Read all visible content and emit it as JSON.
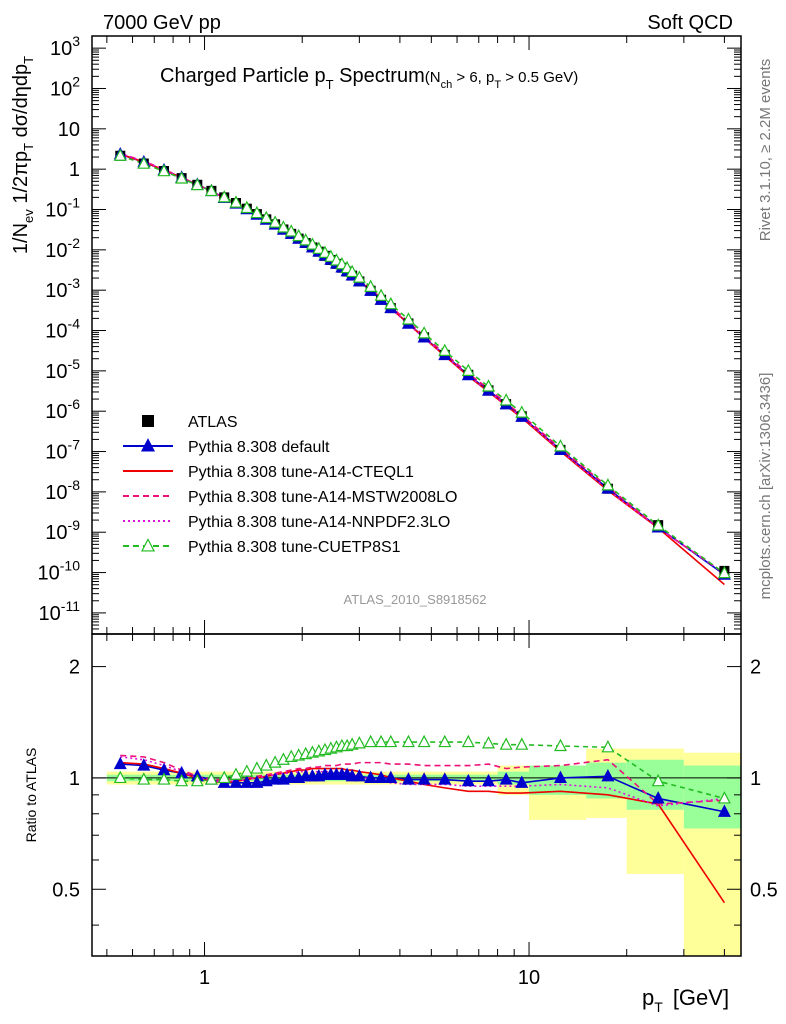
{
  "header": {
    "left": "7000 GeV pp",
    "right": "Soft QCD"
  },
  "side_labels": {
    "rivet": "Rivet 3.1.10, ≥ 2.2M events",
    "mcplots": "mcplots.cern.ch [arXiv:1306.3436]"
  },
  "analysis_id": "ATLAS_2010_S8918562",
  "title": {
    "main_a": "Charged Particle p",
    "main_sub": "T",
    "main_b": " Spectrum",
    "cond_a": "(N",
    "cond_sub1": "ch",
    "cond_b": " > 6, p",
    "cond_sub2": "T",
    "cond_c": " > 0.5 GeV)"
  },
  "axes": {
    "ylabel_main_text": "1/N_ev 1/2πp_T dσ/dηdp_T",
    "ylabel_ratio": "Ratio to ATLAS",
    "xlabel_a": "p",
    "xlabel_sub": "T",
    "xlabel_b": "[GeV]"
  },
  "chart_data": [
    {
      "type": "scatter",
      "panel": "main",
      "xscale": "log",
      "yscale": "log",
      "xlim": [
        0.45,
        45
      ],
      "ylim": [
        3e-12,
        2000
      ],
      "x_ticks": [
        {
          "v": 1,
          "label": "1"
        },
        {
          "v": 10,
          "label": "10"
        }
      ],
      "y_ticks": [
        {
          "e": 3,
          "label": "10^3"
        },
        {
          "e": 2,
          "label": "10^2"
        },
        {
          "e": 1,
          "label": "10"
        },
        {
          "e": 0,
          "label": "1"
        },
        {
          "e": -1,
          "label": "10^-1"
        },
        {
          "e": -2,
          "label": "10^-2"
        },
        {
          "e": -3,
          "label": "10^-3"
        },
        {
          "e": -4,
          "label": "10^-4"
        },
        {
          "e": -5,
          "label": "10^-5"
        },
        {
          "e": -6,
          "label": "10^-6"
        },
        {
          "e": -7,
          "label": "10^-7"
        },
        {
          "e": -8,
          "label": "10^-8"
        },
        {
          "e": -9,
          "label": "10^-9"
        },
        {
          "e": -10,
          "label": "10^-10"
        },
        {
          "e": -11,
          "label": "10^-11"
        }
      ],
      "x": [
        0.55,
        0.65,
        0.75,
        0.85,
        0.95,
        1.05,
        1.15,
        1.25,
        1.35,
        1.45,
        1.55,
        1.65,
        1.75,
        1.85,
        1.95,
        2.05,
        2.15,
        2.25,
        2.35,
        2.45,
        2.55,
        2.65,
        2.75,
        2.85,
        3.0,
        3.25,
        3.5,
        3.75,
        4.25,
        4.75,
        5.5,
        6.5,
        7.5,
        8.5,
        9.5,
        12.5,
        17.5,
        25,
        40
      ],
      "atlas_y": [
        2.15,
        1.38,
        0.9,
        0.6,
        0.41,
        0.29,
        0.2,
        0.145,
        0.105,
        0.077,
        0.057,
        0.043,
        0.032,
        0.025,
        0.019,
        0.0148,
        0.0115,
        0.009,
        0.0071,
        0.0056,
        0.0045,
        0.0036,
        0.0029,
        0.0023,
        0.00165,
        0.00097,
        0.00058,
        0.00036,
        0.00015,
        6.8e-05,
        2.5e-05,
        8e-06,
        3.3e-06,
        1.5e-06,
        7.5e-07,
        1.1e-07,
        1.2e-08,
        1.5e-09,
        1.1e-10
      ],
      "legend": [
        {
          "label": "ATLAS",
          "color": "#000000",
          "marker": "square",
          "line": "none"
        },
        {
          "label": "Pythia 8.308 default",
          "color": "#0000cc",
          "marker": "triangle",
          "line": "solid"
        },
        {
          "label": "Pythia 8.308 tune-A14-CTEQL1",
          "color": "#ee0000",
          "marker": "none",
          "line": "solid"
        },
        {
          "label": "Pythia 8.308 tune-A14-MSTW2008LO",
          "color": "#ee1177",
          "marker": "none",
          "line": "dashed"
        },
        {
          "label": "Pythia 8.308 tune-A14-NNPDF2.3LO",
          "color": "#dd11dd",
          "marker": "none",
          "line": "dotted"
        },
        {
          "label": "Pythia 8.308 tune-CUETP8S1",
          "color": "#22bb22",
          "marker": "open-triangle",
          "line": "dashed"
        }
      ],
      "legend_position": "lower-left"
    },
    {
      "type": "line",
      "panel": "ratio",
      "xscale": "log",
      "yscale": "log",
      "xlim": [
        0.45,
        45
      ],
      "ylim": [
        0.33,
        2.45
      ],
      "y_ticks": [
        {
          "v": 0.5,
          "label": "0.5"
        },
        {
          "v": 1,
          "label": "1"
        },
        {
          "v": 2,
          "label": "2"
        }
      ],
      "x": [
        0.55,
        0.65,
        0.75,
        0.85,
        0.95,
        1.05,
        1.15,
        1.25,
        1.35,
        1.45,
        1.55,
        1.65,
        1.75,
        1.85,
        1.95,
        2.05,
        2.15,
        2.25,
        2.35,
        2.45,
        2.55,
        2.65,
        2.75,
        2.85,
        3.0,
        3.25,
        3.5,
        3.75,
        4.25,
        4.75,
        5.5,
        6.5,
        7.5,
        8.5,
        9.5,
        12.5,
        17.5,
        25,
        40
      ],
      "bands": [
        {
          "x0": 0.5,
          "x1": 8.0,
          "yellow": [
            0.96,
            1.04
          ],
          "green": [
            0.98,
            1.02
          ]
        },
        {
          "x0": 8.0,
          "x1": 10.0,
          "yellow": [
            0.9,
            1.08
          ],
          "green": [
            0.96,
            1.04
          ]
        },
        {
          "x0": 10.0,
          "x1": 15.0,
          "yellow": [
            0.77,
            1.08
          ],
          "green": [
            0.9,
            1.08
          ]
        },
        {
          "x0": 15.0,
          "x1": 20.0,
          "yellow": [
            0.78,
            1.2
          ],
          "green": [
            0.88,
            1.1
          ]
        },
        {
          "x0": 20.0,
          "x1": 30.0,
          "yellow": [
            0.55,
            1.2
          ],
          "green": [
            0.82,
            1.12
          ]
        },
        {
          "x0": 30.0,
          "x1": 45.0,
          "yellow": [
            0.33,
            1.17
          ],
          "green": [
            0.73,
            1.08
          ]
        }
      ],
      "series": [
        {
          "name": "Pythia 8.308 default",
          "color": "#0000cc",
          "marker": "triangle",
          "dash": "",
          "values": [
            1.09,
            1.08,
            1.05,
            1.03,
            1.01,
            0.99,
            0.97,
            0.97,
            0.97,
            0.97,
            0.98,
            0.99,
            0.99,
            1.0,
            1.0,
            1.01,
            1.01,
            1.01,
            1.02,
            1.02,
            1.02,
            1.02,
            1.02,
            1.01,
            1.01,
            1.0,
            1.0,
            1.0,
            0.99,
            0.99,
            0.99,
            0.98,
            0.98,
            0.99,
            0.97,
            1.0,
            1.01,
            0.88,
            0.81
          ]
        },
        {
          "name": "Pythia 8.308 tune-A14-CTEQL1",
          "color": "#ee0000",
          "marker": "none",
          "dash": "",
          "values": [
            1.1,
            1.09,
            1.06,
            1.03,
            1.0,
            0.98,
            0.97,
            0.98,
            0.99,
            1.0,
            1.01,
            1.02,
            1.03,
            1.04,
            1.05,
            1.05,
            1.06,
            1.06,
            1.06,
            1.06,
            1.06,
            1.06,
            1.05,
            1.05,
            1.04,
            1.03,
            1.02,
            1.0,
            0.98,
            0.96,
            0.94,
            0.92,
            0.92,
            0.91,
            0.91,
            0.92,
            0.9,
            0.85,
            0.46
          ]
        },
        {
          "name": "Pythia 8.308 tune-A14-MSTW2008LO",
          "color": "#ee1177",
          "marker": "none",
          "dash": "6,4",
          "values": [
            1.15,
            1.14,
            1.1,
            1.05,
            1.01,
            0.99,
            0.99,
            0.99,
            1.0,
            1.01,
            1.02,
            1.03,
            1.04,
            1.05,
            1.06,
            1.06,
            1.07,
            1.07,
            1.08,
            1.08,
            1.08,
            1.09,
            1.09,
            1.09,
            1.1,
            1.1,
            1.1,
            1.09,
            1.09,
            1.08,
            1.08,
            1.08,
            1.09,
            1.06,
            1.07,
            1.08,
            1.12,
            0.85,
            0.87
          ]
        },
        {
          "name": "Pythia 8.308 tune-A14-NNPDF2.3LO",
          "color": "#dd11dd",
          "marker": "none",
          "dash": "2,3",
          "values": [
            1.14,
            1.12,
            1.08,
            1.04,
            1.0,
            0.98,
            0.98,
            0.98,
            0.99,
            1.0,
            1.01,
            1.02,
            1.03,
            1.03,
            1.04,
            1.04,
            1.04,
            1.04,
            1.04,
            1.04,
            1.03,
            1.03,
            1.02,
            1.02,
            1.01,
            0.99,
            0.98,
            0.97,
            0.96,
            0.96,
            0.96,
            0.95,
            0.95,
            0.95,
            0.95,
            0.96,
            0.94,
            0.84,
            0.88
          ]
        },
        {
          "name": "Pythia 8.308 tune-CUETP8S1",
          "color": "#22bb22",
          "marker": "open-triangle",
          "dash": "5,4",
          "values": [
            1.0,
            0.99,
            0.99,
            0.98,
            0.98,
            0.99,
            1.0,
            1.02,
            1.04,
            1.06,
            1.08,
            1.1,
            1.12,
            1.14,
            1.15,
            1.16,
            1.17,
            1.18,
            1.19,
            1.2,
            1.21,
            1.22,
            1.22,
            1.23,
            1.24,
            1.25,
            1.25,
            1.25,
            1.25,
            1.25,
            1.25,
            1.25,
            1.24,
            1.23,
            1.23,
            1.22,
            1.21,
            0.98,
            0.88
          ]
        }
      ]
    }
  ]
}
